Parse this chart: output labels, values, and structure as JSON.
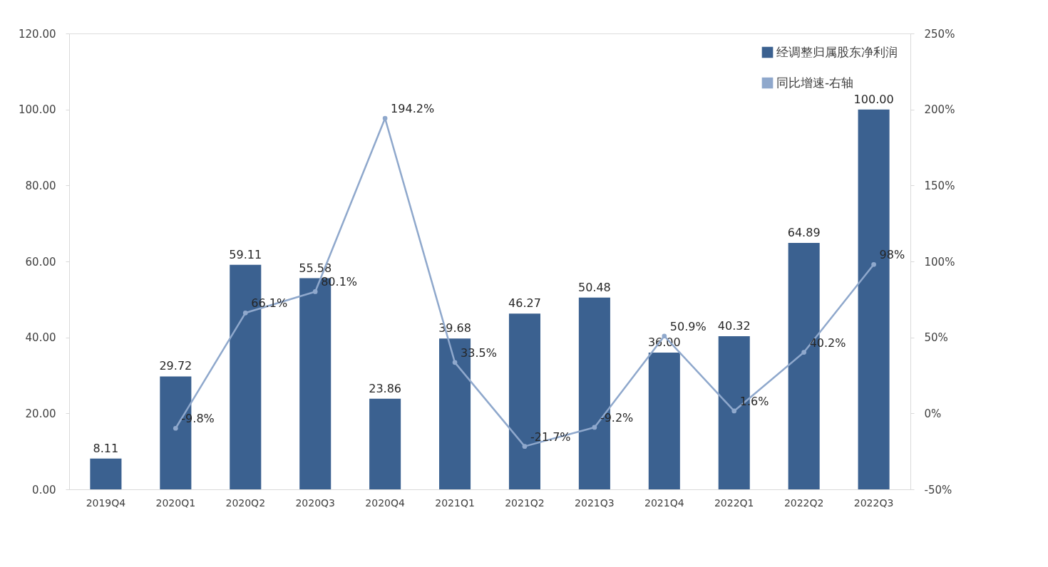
{
  "chart_data": {
    "type": "bar",
    "categories": [
      "2019Q4",
      "2020Q1",
      "2020Q2",
      "2020Q3",
      "2020Q4",
      "2021Q1",
      "2021Q2",
      "2021Q3",
      "2021Q4",
      "2022Q1",
      "2022Q2",
      "2022Q3"
    ],
    "series": [
      {
        "name": "经调整归属股东净利润",
        "color": "#3b6190",
        "values": [
          8.11,
          29.72,
          59.11,
          55.58,
          23.86,
          39.68,
          46.27,
          50.48,
          36.0,
          40.32,
          64.89,
          100.0
        ],
        "value_labels": [
          "8.11",
          "29.72",
          "59.11",
          "55.58",
          "23.86",
          "39.68",
          "46.27",
          "50.48",
          "36.00",
          "40.32",
          "64.89",
          "100.00"
        ]
      },
      {
        "name": "同比增速-右轴",
        "type": "line",
        "axis": "y2",
        "color": "#8fa8cc",
        "marker": "circle",
        "values": [
          null,
          -9.8,
          66.1,
          80.1,
          194.2,
          33.5,
          -21.7,
          -9.2,
          50.9,
          1.6,
          40.2,
          98
        ],
        "value_labels": [
          null,
          "-9.8%",
          "66.1%",
          "80.1%",
          "194.2%",
          "33.5%",
          "-21.7%",
          "-9.2%",
          "50.9%",
          "1.6%",
          "40.2%",
          "98%"
        ]
      }
    ],
    "ylim": [
      0,
      120
    ],
    "yticks": [
      {
        "value": 0,
        "label": "0.00"
      },
      {
        "value": 20,
        "label": "20.00"
      },
      {
        "value": 40,
        "label": "40.00"
      },
      {
        "value": 60,
        "label": "60.00"
      },
      {
        "value": 80,
        "label": "80.00"
      },
      {
        "value": 100,
        "label": "100.00"
      },
      {
        "value": 120,
        "label": "120.00"
      }
    ],
    "y2lim": [
      -50,
      250
    ],
    "y2ticks": [
      {
        "value": -50,
        "label": "-50%"
      },
      {
        "value": 0,
        "label": "0%"
      },
      {
        "value": 50,
        "label": "50%"
      },
      {
        "value": 100,
        "label": "100%"
      },
      {
        "value": 150,
        "label": "150%"
      },
      {
        "value": 200,
        "label": "200%"
      },
      {
        "value": 250,
        "label": "250%"
      }
    ],
    "grid": false,
    "legend": "top right"
  }
}
